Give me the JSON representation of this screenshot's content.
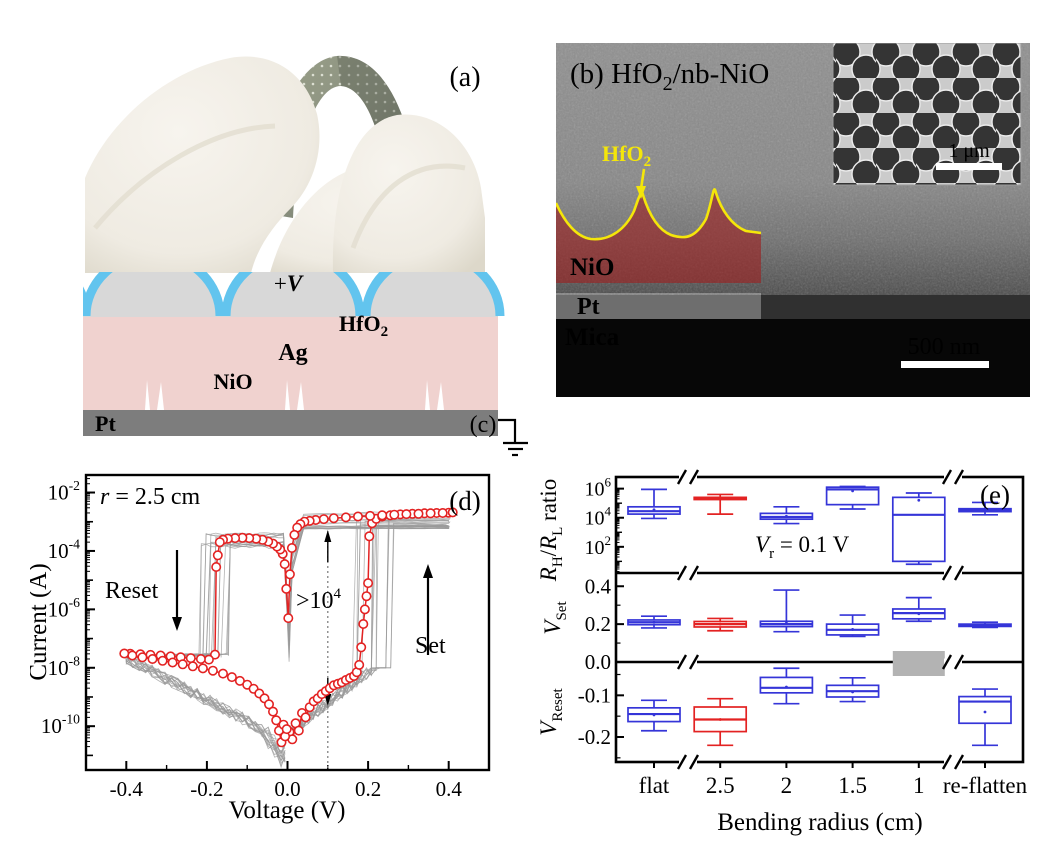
{
  "colors": {
    "accent_red": "#e32222",
    "box_blue": "#3535d8",
    "gray_line": "#9a9a9a",
    "hfo2_blue": "#62c4ee",
    "nio_pink": "#f0d2cf",
    "ag_gray": "#d8d8d8",
    "pt_gray": "#7d7d7d",
    "sem_red_overlay": "rgba(158,30,30,0.6)",
    "yellow": "#f4e60a",
    "gray_marker": "#b3b3b3"
  },
  "panel_a": {
    "tag": "(a)"
  },
  "panel_c": {
    "plus_v": {
      "plus": "+",
      "v": "V"
    },
    "labels": {
      "hfo2_base": "HfO",
      "hfo2_sub": "2",
      "ag": "Ag",
      "nio": "NiO",
      "pt": "Pt",
      "tag": "(c)"
    }
  },
  "panel_b": {
    "tag_base": "(b) HfO",
    "tag_sub": "2",
    "tag_rest": "/nb-NiO",
    "labels": {
      "hfo2_base": "HfO",
      "hfo2_sub": "2",
      "nio": "NiO",
      "pt": "Pt",
      "mica": "Mica"
    },
    "scalebar_main": "500 nm",
    "scalebar_inset": "1 μm"
  },
  "chart_data": [
    {
      "type": "line",
      "panel_tag": "(d)",
      "note_prefix": "r",
      "note_rest": " = 2.5 cm",
      "xlabel": "Voltage (V)",
      "ylabel": "Current (A)",
      "xlim": [
        -0.5,
        0.5
      ],
      "xticks": [
        -0.4,
        -0.2,
        0.0,
        0.2,
        0.4
      ],
      "x_minor_step": 0.1,
      "ylog_exponent_range": [
        -11.5,
        -1.4
      ],
      "ytick_exponents": [
        -2,
        -4,
        -6,
        -8,
        -10
      ],
      "grid": false,
      "legend": "none",
      "annotations": {
        "reset": "Reset",
        "set": "Set",
        "ratio_base": ">10",
        "ratio_sup": "4",
        "vline_x": 0.1
      },
      "series": [
        {
          "name": "median switching cycle",
          "color": "#e32222",
          "marker": "open-circle",
          "points": [
            [
              0.005,
              -10.2
            ],
            [
              0.012,
              -10.45
            ],
            [
              0.02,
              -9.9
            ],
            [
              0.028,
              -10.15
            ],
            [
              0.036,
              -9.55
            ],
            [
              0.045,
              -9.7
            ],
            [
              0.055,
              -9.35
            ],
            [
              0.065,
              -9.15
            ],
            [
              0.075,
              -9.05
            ],
            [
              0.085,
              -8.9
            ],
            [
              0.095,
              -8.8
            ],
            [
              0.105,
              -8.7
            ],
            [
              0.115,
              -8.6
            ],
            [
              0.125,
              -8.55
            ],
            [
              0.135,
              -8.5
            ],
            [
              0.145,
              -8.42
            ],
            [
              0.155,
              -8.35
            ],
            [
              0.165,
              -8.28
            ],
            [
              0.172,
              -8.15
            ],
            [
              0.178,
              -7.9
            ],
            [
              0.183,
              -7.3
            ],
            [
              0.188,
              -6.5
            ],
            [
              0.192,
              -6.0
            ],
            [
              0.196,
              -5.55
            ],
            [
              0.2,
              -5.1
            ],
            [
              0.203,
              -3.5
            ],
            [
              0.21,
              -3.05
            ],
            [
              0.22,
              -2.9
            ],
            [
              0.235,
              -2.82
            ],
            [
              0.255,
              -2.78
            ],
            [
              0.28,
              -2.75
            ],
            [
              0.31,
              -2.73
            ],
            [
              0.34,
              -2.71
            ],
            [
              0.37,
              -2.7
            ],
            [
              0.4,
              -2.69
            ],
            [
              0.41,
              -2.68
            ],
            [
              0.385,
              -2.7
            ],
            [
              0.355,
              -2.71
            ],
            [
              0.325,
              -2.73
            ],
            [
              0.295,
              -2.74
            ],
            [
              0.265,
              -2.76
            ],
            [
              0.235,
              -2.78
            ],
            [
              0.205,
              -2.8
            ],
            [
              0.175,
              -2.82
            ],
            [
              0.145,
              -2.85
            ],
            [
              0.115,
              -2.88
            ],
            [
              0.09,
              -2.91
            ],
            [
              0.07,
              -2.94
            ],
            [
              0.055,
              -2.97
            ],
            [
              0.042,
              -3.0
            ],
            [
              0.032,
              -3.08
            ],
            [
              0.024,
              -3.2
            ],
            [
              0.017,
              -3.45
            ],
            [
              0.011,
              -3.9
            ],
            [
              0.006,
              -4.8
            ],
            [
              0.002,
              -6.3
            ],
            [
              -0.003,
              -5.3
            ],
            [
              -0.007,
              -4.45
            ],
            [
              -0.012,
              -4.1
            ],
            [
              -0.018,
              -3.95
            ],
            [
              -0.026,
              -3.85
            ],
            [
              -0.036,
              -3.75
            ],
            [
              -0.048,
              -3.68
            ],
            [
              -0.062,
              -3.62
            ],
            [
              -0.078,
              -3.58
            ],
            [
              -0.095,
              -3.56
            ],
            [
              -0.112,
              -3.55
            ],
            [
              -0.13,
              -3.56
            ],
            [
              -0.148,
              -3.58
            ],
            [
              -0.16,
              -3.62
            ],
            [
              -0.168,
              -3.7
            ],
            [
              -0.173,
              -4.15
            ],
            [
              -0.177,
              -4.55
            ],
            [
              -0.18,
              -7.55
            ],
            [
              -0.195,
              -7.72
            ],
            [
              -0.215,
              -7.7
            ],
            [
              -0.24,
              -7.67
            ],
            [
              -0.265,
              -7.64
            ],
            [
              -0.29,
              -7.61
            ],
            [
              -0.315,
              -7.58
            ],
            [
              -0.34,
              -7.56
            ],
            [
              -0.365,
              -7.54
            ],
            [
              -0.39,
              -7.52
            ],
            [
              -0.405,
              -7.51
            ],
            [
              -0.385,
              -7.58
            ],
            [
              -0.36,
              -7.64
            ],
            [
              -0.335,
              -7.7
            ],
            [
              -0.31,
              -7.76
            ],
            [
              -0.285,
              -7.82
            ],
            [
              -0.26,
              -7.88
            ],
            [
              -0.235,
              -7.95
            ],
            [
              -0.21,
              -8.02
            ],
            [
              -0.185,
              -8.1
            ],
            [
              -0.16,
              -8.2
            ],
            [
              -0.138,
              -8.32
            ],
            [
              -0.118,
              -8.45
            ],
            [
              -0.1,
              -8.58
            ],
            [
              -0.084,
              -8.72
            ],
            [
              -0.07,
              -8.88
            ],
            [
              -0.057,
              -9.05
            ],
            [
              -0.046,
              -9.25
            ],
            [
              -0.036,
              -9.5
            ],
            [
              -0.028,
              -9.8
            ],
            [
              -0.021,
              -10.15
            ],
            [
              -0.015,
              -10.55
            ],
            [
              -0.01,
              -9.95
            ],
            [
              -0.006,
              -10.35
            ],
            [
              -0.002,
              -10.1
            ]
          ]
        }
      ],
      "gray": {
        "name": "individual cycles",
        "color": "#9a9a9a",
        "count": 16,
        "set_v_range": [
          0.17,
          0.27
        ],
        "reset_v_range": [
          -0.22,
          -0.14
        ],
        "plateau_exp_range": [
          -3.2,
          -2.65
        ],
        "lrs_exp_range": [
          -3.9,
          -3.35
        ],
        "noise_exp": 0.45
      }
    },
    {
      "type": "box",
      "panel_tag": "(e)",
      "categories": [
        "flat",
        "2.5",
        "2",
        "1.5",
        "1",
        "re-flatten"
      ],
      "xlabel": "Bending radius (cm)",
      "note": {
        "base": "V",
        "sub": "r",
        "rest": " = 0.1 V"
      },
      "break_after_categories": [
        "flat",
        "1"
      ],
      "panels": [
        {
          "ylabel": {
            "r1": "R",
            "sub1": "H",
            "mid": "/",
            "r2": "R",
            "sub2": "L",
            "rest": " ratio"
          },
          "scale": "log",
          "exp_range": [
            0.2,
            6.8
          ],
          "ytick_exponents": [
            6,
            4,
            2
          ],
          "boxes": [
            {
              "cat": "flat",
              "color": "blue",
              "lo": 3.95,
              "q1": 4.25,
              "med": 4.45,
              "q3": 4.75,
              "hi": 5.95,
              "mean": 4.55
            },
            {
              "cat": "2.5",
              "color": "red",
              "lo": 4.25,
              "q1": 5.25,
              "med": 5.33,
              "q3": 5.4,
              "hi": 5.6,
              "mean": 5.3
            },
            {
              "cat": "2",
              "color": "blue",
              "lo": 3.6,
              "q1": 3.9,
              "med": 4.05,
              "q3": 4.3,
              "hi": 4.75,
              "mean": 4.1
            },
            {
              "cat": "1.5",
              "color": "blue",
              "lo": 4.6,
              "q1": 4.9,
              "med": 5.95,
              "q3": 6.1,
              "hi": 6.15,
              "mean": 5.85
            },
            {
              "cat": "1",
              "color": "blue",
              "lo": 0.8,
              "q1": 1.0,
              "med": 4.2,
              "q3": 5.4,
              "hi": 5.7,
              "mean": 5.2
            },
            {
              "cat": "re-flatten",
              "color": "blue",
              "lo": 4.2,
              "q1": 4.42,
              "med": 4.5,
              "q3": 4.62,
              "hi": 5.05,
              "mean": 4.5
            }
          ]
        },
        {
          "ylabel": {
            "base": "V",
            "sub": "Set"
          },
          "scale": "linear",
          "range": [
            0,
            0.47
          ],
          "yticks": [
            0.4,
            0.2,
            0.0
          ],
          "yminors": [
            0.3,
            0.1
          ],
          "boxes": [
            {
              "cat": "flat",
              "color": "blue",
              "lo": 0.18,
              "q1": 0.197,
              "med": 0.21,
              "q3": 0.222,
              "hi": 0.242,
              "mean": 0.21
            },
            {
              "cat": "2.5",
              "color": "red",
              "lo": 0.165,
              "q1": 0.185,
              "med": 0.2,
              "q3": 0.214,
              "hi": 0.23,
              "mean": 0.2
            },
            {
              "cat": "2",
              "color": "blue",
              "lo": 0.16,
              "q1": 0.187,
              "med": 0.2,
              "q3": 0.215,
              "hi": 0.38,
              "mean": 0.205
            },
            {
              "cat": "1.5",
              "color": "blue",
              "lo": 0.135,
              "q1": 0.143,
              "med": 0.17,
              "q3": 0.2,
              "hi": 0.248,
              "mean": 0.172
            },
            {
              "cat": "1",
              "color": "blue",
              "lo": 0.215,
              "q1": 0.228,
              "med": 0.258,
              "q3": 0.28,
              "hi": 0.34,
              "mean": 0.255
            },
            {
              "cat": "re-flatten",
              "color": "blue",
              "lo": 0.183,
              "q1": 0.188,
              "med": 0.195,
              "q3": 0.2,
              "hi": 0.21,
              "mean": 0.195
            }
          ]
        },
        {
          "ylabel": {
            "base": "V",
            "sub": "Reset"
          },
          "scale": "linear",
          "range": [
            -0.26,
            -0.02
          ],
          "yticks": [
            -0.1,
            -0.2
          ],
          "yminors": [
            -0.05,
            -0.15,
            -0.25
          ],
          "boxes": [
            {
              "cat": "flat",
              "color": "blue",
              "lo": -0.185,
              "q1": -0.163,
              "med": -0.145,
              "q3": -0.13,
              "hi": -0.112,
              "mean": -0.147
            },
            {
              "cat": "2.5",
              "color": "red",
              "lo": -0.22,
              "q1": -0.187,
              "med": -0.158,
              "q3": -0.128,
              "hi": -0.108,
              "mean": -0.158
            },
            {
              "cat": "2",
              "color": "blue",
              "lo": -0.12,
              "q1": -0.094,
              "med": -0.082,
              "q3": -0.057,
              "hi": -0.035,
              "mean": -0.08
            },
            {
              "cat": "1.5",
              "color": "blue",
              "lo": -0.115,
              "q1": -0.104,
              "med": -0.09,
              "q3": -0.076,
              "hi": -0.058,
              "mean": -0.092
            },
            {
              "cat": "1",
              "gray_bar": true
            },
            {
              "cat": "re-flatten",
              "color": "blue",
              "lo": -0.22,
              "q1": -0.167,
              "med": -0.115,
              "q3": -0.103,
              "hi": -0.085,
              "mean": -0.14
            }
          ]
        }
      ]
    }
  ]
}
